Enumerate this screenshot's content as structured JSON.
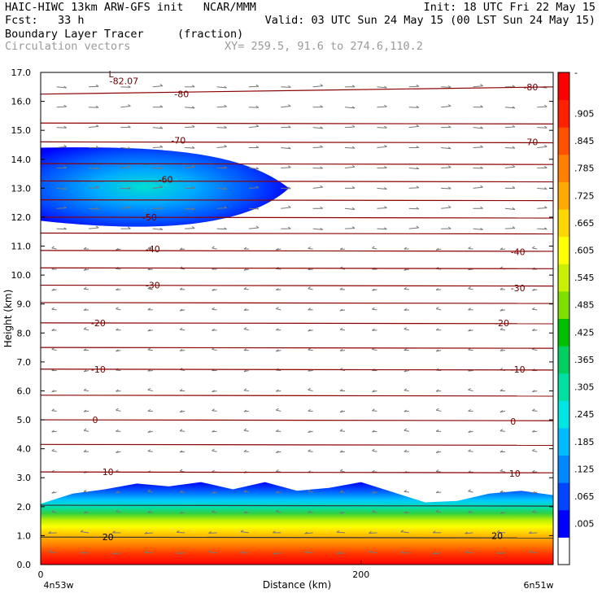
{
  "header": {
    "line1_left": "HAIC-HIWC 13km ARW-GFS init   NCAR/MMM",
    "line1_right": "Init: 18 UTC Fri 22 May 15",
    "line2_left": "Fcst:   33 h",
    "line2_right": "Valid: 03 UTC Sun 24 May 15 (00 LST Sun 24 May 15)",
    "line3_left": "Boundary Layer Tracer",
    "line3_mid": "(fraction)",
    "line4_left": "Circulation vectors",
    "line4_mid": "XY= 259.5, 91.6 to 274.6,110.2"
  },
  "chart_data": {
    "type": "heatmap",
    "title": "Boundary Layer Tracer",
    "units": "(fraction)",
    "xlabel": "Distance (km)",
    "ylabel": "Height (km)",
    "xlim": [
      0,
      320
    ],
    "ylim": [
      0,
      17
    ],
    "x_ticks": [
      0,
      200
    ],
    "x_tick_labels": [
      "0",
      "200"
    ],
    "x_end_labels": [
      "4n53w",
      "6n51w"
    ],
    "y_ticks": [
      0,
      1,
      2,
      3,
      4,
      5,
      6,
      7,
      8,
      9,
      10,
      11,
      12,
      13,
      14,
      15,
      16,
      17
    ],
    "y_tick_labels": [
      "0.0",
      "1.0",
      "2.0",
      "3.0",
      "4.0",
      "5.0",
      "6.0",
      "7.0",
      "8.0",
      "9.0",
      "10.0",
      "11.0",
      "12.0",
      "13.0",
      "14.0",
      "15.0",
      "16.0",
      "17.0"
    ],
    "colorbar": {
      "labels": [
        ".005",
        ".065",
        ".125",
        ".185",
        ".245",
        ".305",
        ".365",
        ".425",
        ".485",
        ".545",
        ".605",
        ".665",
        ".725",
        ".785",
        ".845",
        ".905",
        "-"
      ],
      "colors": [
        "#ffffff",
        "#0000ff",
        "#0044ff",
        "#0088ff",
        "#00bbff",
        "#00e5e5",
        "#00e0a0",
        "#00d060",
        "#00c000",
        "#7fe000",
        "#c8f000",
        "#ffff00",
        "#ffd700",
        "#ffaa00",
        "#ff7f00",
        "#ff5000",
        "#ff2000",
        "#ff0000"
      ]
    },
    "surface_layer": {
      "x": [
        0,
        20,
        40,
        60,
        80,
        100,
        120,
        140,
        160,
        180,
        200,
        220,
        240,
        260,
        280,
        300,
        320
      ],
      "top_km": [
        2.1,
        2.45,
        2.6,
        2.8,
        2.7,
        2.85,
        2.6,
        2.85,
        2.55,
        2.65,
        2.85,
        2.5,
        2.15,
        2.2,
        2.45,
        2.55,
        2.4
      ]
    },
    "upper_plume": {
      "x_extent": [
        0,
        155
      ],
      "top_km": 14.4,
      "bottom_km": 11.6,
      "core_km": 13.0
    },
    "temperature_contours": {
      "levels": [
        -82.07,
        -80,
        -70,
        -60,
        -50,
        -40,
        -30,
        -20,
        -10,
        0,
        10,
        20
      ],
      "labels": [
        {
          "text": "-82.07",
          "x": 52,
          "y": 16.7
        },
        {
          "text": "L",
          "x": 44,
          "y": 16.95
        },
        {
          "text": "-80",
          "x": 88,
          "y": 16.25
        },
        {
          "text": "-80",
          "x": 306,
          "y": 16.5
        },
        {
          "text": "-70",
          "x": 86,
          "y": 14.65
        },
        {
          "text": "-70",
          "x": 306,
          "y": 14.6
        },
        {
          "text": "-60",
          "x": 78,
          "y": 13.3
        },
        {
          "text": "-50",
          "x": 68,
          "y": 12.0
        },
        {
          "text": "-40",
          "x": 70,
          "y": 10.9
        },
        {
          "text": "-40",
          "x": 298,
          "y": 10.8
        },
        {
          "text": "-30",
          "x": 70,
          "y": 9.65
        },
        {
          "text": "-30",
          "x": 298,
          "y": 9.55
        },
        {
          "text": "-20",
          "x": 36,
          "y": 8.35
        },
        {
          "text": "-20",
          "x": 288,
          "y": 8.35
        },
        {
          "text": "-10",
          "x": 36,
          "y": 6.75
        },
        {
          "text": "-10",
          "x": 298,
          "y": 6.75
        },
        {
          "text": "0",
          "x": 34,
          "y": 5.0
        },
        {
          "text": "0",
          "x": 295,
          "y": 4.95
        },
        {
          "text": "10",
          "x": 42,
          "y": 3.2
        },
        {
          "text": "10",
          "x": 296,
          "y": 3.15
        },
        {
          "text": "20",
          "x": 42,
          "y": 0.95
        },
        {
          "text": "20",
          "x": 285,
          "y": 1.0
        }
      ]
    }
  }
}
